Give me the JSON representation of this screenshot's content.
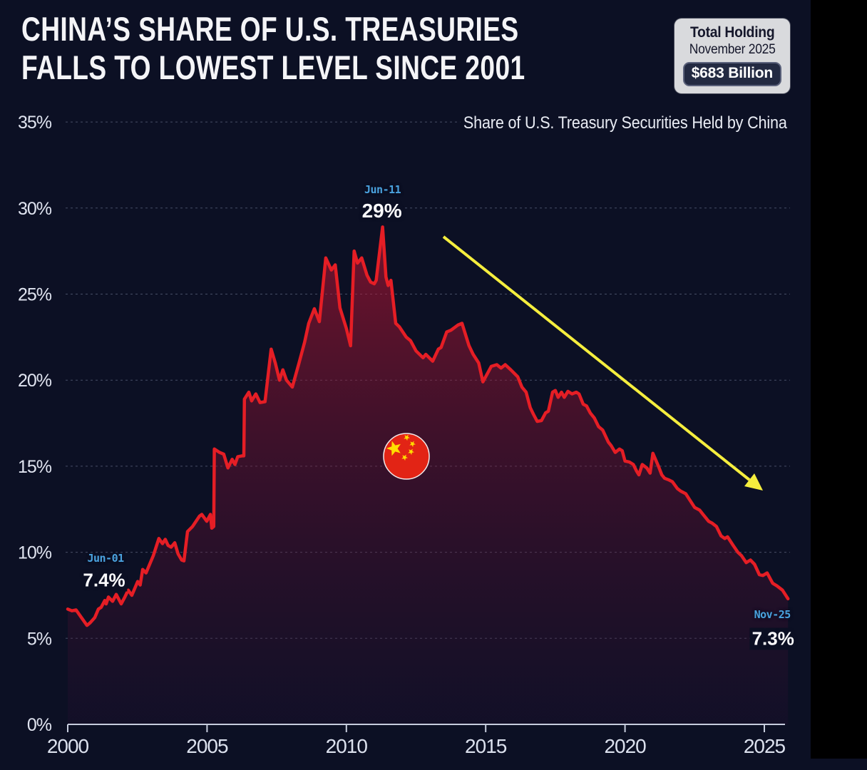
{
  "title": {
    "line1": "CHINA’S SHARE OF U.S. TREASURIES",
    "line2": "FALLS TO LOWEST LEVEL SINCE 2001"
  },
  "holding_box": {
    "label": "Total Holding",
    "date": "November 2025",
    "value": "$683 Billion"
  },
  "subtitle": "Share of U.S. Treasury Securities Held by China",
  "colors": {
    "background": "#0c1024",
    "line_red": "#e51e25",
    "area_top": "#c91633",
    "area_bottom": "#2a0d33",
    "grid": "#9aa4c2",
    "axis": "#c7cdde",
    "label_blue": "#4aa2de",
    "label_white": "#fbfbfd",
    "arrow_yellow": "#f5ee3e",
    "flag_red": "#e22415",
    "flag_gold": "#ffde00"
  },
  "chart_data": {
    "type": "area",
    "title": "Share of U.S. Treasury Securities Held by China",
    "xlabel": "",
    "ylabel": "",
    "xlim": [
      2000,
      2025.9
    ],
    "ylim": [
      0,
      35
    ],
    "grid": "dashed horizontal",
    "x_ticks": [
      2000,
      2005,
      2010,
      2015,
      2020,
      2025
    ],
    "y_ticks": [
      0,
      5,
      10,
      15,
      20,
      25,
      30,
      35
    ],
    "y_tick_suffix": "%",
    "series": [
      {
        "name": "China share of U.S. Treasury securities (%)",
        "points": [
          [
            2000.0,
            6.7
          ],
          [
            2000.15,
            6.6
          ],
          [
            2000.3,
            6.65
          ],
          [
            2000.45,
            6.3
          ],
          [
            2000.69,
            5.75
          ],
          [
            2000.8,
            5.9
          ],
          [
            2000.97,
            6.2
          ],
          [
            2001.1,
            6.7
          ],
          [
            2001.2,
            6.8
          ],
          [
            2001.33,
            7.2
          ],
          [
            2001.38,
            7.0
          ],
          [
            2001.46,
            7.4
          ],
          [
            2001.61,
            7.15
          ],
          [
            2001.74,
            7.55
          ],
          [
            2001.92,
            7.0
          ],
          [
            2002.05,
            7.4
          ],
          [
            2002.17,
            7.8
          ],
          [
            2002.3,
            7.5
          ],
          [
            2002.51,
            8.3
          ],
          [
            2002.6,
            8.1
          ],
          [
            2002.69,
            9.0
          ],
          [
            2002.81,
            8.8
          ],
          [
            2003.07,
            9.8
          ],
          [
            2003.27,
            10.8
          ],
          [
            2003.4,
            10.5
          ],
          [
            2003.5,
            10.75
          ],
          [
            2003.6,
            10.4
          ],
          [
            2003.71,
            10.3
          ],
          [
            2003.84,
            10.55
          ],
          [
            2003.96,
            9.9
          ],
          [
            2004.09,
            9.55
          ],
          [
            2004.17,
            9.5
          ],
          [
            2004.3,
            11.2
          ],
          [
            2004.48,
            11.5
          ],
          [
            2004.73,
            12.1
          ],
          [
            2004.81,
            12.2
          ],
          [
            2004.99,
            11.8
          ],
          [
            2005.12,
            12.2
          ],
          [
            2005.17,
            11.4
          ],
          [
            2005.24,
            11.5
          ],
          [
            2005.26,
            16.0
          ],
          [
            2005.45,
            15.8
          ],
          [
            2005.6,
            15.7
          ],
          [
            2005.75,
            14.9
          ],
          [
            2005.9,
            15.4
          ],
          [
            2006.0,
            15.1
          ],
          [
            2006.1,
            15.55
          ],
          [
            2006.25,
            15.6
          ],
          [
            2006.32,
            15.6
          ],
          [
            2006.34,
            18.9
          ],
          [
            2006.5,
            19.3
          ],
          [
            2006.6,
            18.8
          ],
          [
            2006.75,
            19.2
          ],
          [
            2006.9,
            18.7
          ],
          [
            2007.08,
            18.75
          ],
          [
            2007.3,
            21.8
          ],
          [
            2007.45,
            21.0
          ],
          [
            2007.6,
            20.0
          ],
          [
            2007.72,
            20.6
          ],
          [
            2007.85,
            20.0
          ],
          [
            2008.06,
            19.6
          ],
          [
            2008.3,
            21.0
          ],
          [
            2008.5,
            22.2
          ],
          [
            2008.65,
            23.3
          ],
          [
            2008.85,
            24.15
          ],
          [
            2009.03,
            23.4
          ],
          [
            2009.26,
            27.1
          ],
          [
            2009.46,
            26.4
          ],
          [
            2009.6,
            26.7
          ],
          [
            2009.77,
            24.2
          ],
          [
            2010.0,
            23.0
          ],
          [
            2010.15,
            22.0
          ],
          [
            2010.28,
            27.5
          ],
          [
            2010.4,
            26.8
          ],
          [
            2010.55,
            27.1
          ],
          [
            2010.74,
            26.1
          ],
          [
            2010.87,
            25.7
          ],
          [
            2011.0,
            25.6
          ],
          [
            2011.07,
            25.8
          ],
          [
            2011.3,
            28.9
          ],
          [
            2011.42,
            26.0
          ],
          [
            2011.5,
            25.5
          ],
          [
            2011.6,
            25.8
          ],
          [
            2011.77,
            23.3
          ],
          [
            2011.9,
            23.1
          ],
          [
            2012.15,
            22.5
          ],
          [
            2012.3,
            22.3
          ],
          [
            2012.5,
            21.7
          ],
          [
            2012.75,
            21.3
          ],
          [
            2012.85,
            21.5
          ],
          [
            2013.1,
            21.1
          ],
          [
            2013.3,
            21.8
          ],
          [
            2013.4,
            21.9
          ],
          [
            2013.6,
            22.8
          ],
          [
            2013.75,
            22.9
          ],
          [
            2014.0,
            23.2
          ],
          [
            2014.15,
            23.3
          ],
          [
            2014.4,
            22.0
          ],
          [
            2014.55,
            21.5
          ],
          [
            2014.75,
            21.0
          ],
          [
            2014.9,
            19.9
          ],
          [
            2015.2,
            20.8
          ],
          [
            2015.4,
            20.9
          ],
          [
            2015.55,
            20.7
          ],
          [
            2015.7,
            20.9
          ],
          [
            2015.9,
            20.6
          ],
          [
            2016.15,
            20.2
          ],
          [
            2016.3,
            19.6
          ],
          [
            2016.45,
            19.3
          ],
          [
            2016.6,
            18.4
          ],
          [
            2016.72,
            18.0
          ],
          [
            2016.85,
            17.6
          ],
          [
            2017.0,
            17.65
          ],
          [
            2017.15,
            18.1
          ],
          [
            2017.25,
            18.2
          ],
          [
            2017.4,
            19.3
          ],
          [
            2017.5,
            19.4
          ],
          [
            2017.6,
            19.0
          ],
          [
            2017.72,
            19.3
          ],
          [
            2017.82,
            19.0
          ],
          [
            2017.95,
            19.35
          ],
          [
            2018.1,
            19.2
          ],
          [
            2018.25,
            19.3
          ],
          [
            2018.35,
            19.2
          ],
          [
            2018.5,
            18.6
          ],
          [
            2018.62,
            18.5
          ],
          [
            2018.75,
            18.1
          ],
          [
            2018.9,
            17.8
          ],
          [
            2019.05,
            17.3
          ],
          [
            2019.2,
            17.1
          ],
          [
            2019.4,
            16.4
          ],
          [
            2019.5,
            16.2
          ],
          [
            2019.65,
            15.8
          ],
          [
            2019.8,
            16.0
          ],
          [
            2019.9,
            15.9
          ],
          [
            2020.0,
            15.3
          ],
          [
            2020.15,
            15.25
          ],
          [
            2020.3,
            15.1
          ],
          [
            2020.42,
            14.7
          ],
          [
            2020.5,
            14.5
          ],
          [
            2020.62,
            15.1
          ],
          [
            2020.78,
            14.9
          ],
          [
            2020.9,
            14.6
          ],
          [
            2021.0,
            15.75
          ],
          [
            2021.2,
            15.0
          ],
          [
            2021.32,
            14.5
          ],
          [
            2021.42,
            14.3
          ],
          [
            2021.58,
            14.2
          ],
          [
            2021.7,
            14.1
          ],
          [
            2021.88,
            13.7
          ],
          [
            2022.0,
            13.55
          ],
          [
            2022.18,
            13.4
          ],
          [
            2022.3,
            13.1
          ],
          [
            2022.5,
            12.6
          ],
          [
            2022.68,
            12.45
          ],
          [
            2022.8,
            12.2
          ],
          [
            2023.0,
            11.8
          ],
          [
            2023.12,
            11.7
          ],
          [
            2023.28,
            11.5
          ],
          [
            2023.45,
            10.95
          ],
          [
            2023.58,
            10.8
          ],
          [
            2023.68,
            10.9
          ],
          [
            2023.88,
            10.4
          ],
          [
            2024.05,
            10.0
          ],
          [
            2024.18,
            9.8
          ],
          [
            2024.35,
            9.4
          ],
          [
            2024.5,
            9.55
          ],
          [
            2024.65,
            9.3
          ],
          [
            2024.82,
            8.7
          ],
          [
            2024.95,
            8.65
          ],
          [
            2025.1,
            8.8
          ],
          [
            2025.3,
            8.2
          ],
          [
            2025.45,
            8.05
          ],
          [
            2025.65,
            7.8
          ],
          [
            2025.85,
            7.3
          ]
        ]
      }
    ],
    "annotations": [
      {
        "label": "Jun-01",
        "value": "7.4%",
        "x": 2001.46,
        "y": 7.4
      },
      {
        "label": "Jun-11",
        "value": "29%",
        "x": 2011.3,
        "y": 28.9
      },
      {
        "label": "Nov-25",
        "value": "7.3%",
        "x": 2025.85,
        "y": 7.3
      }
    ],
    "legend": "none"
  }
}
